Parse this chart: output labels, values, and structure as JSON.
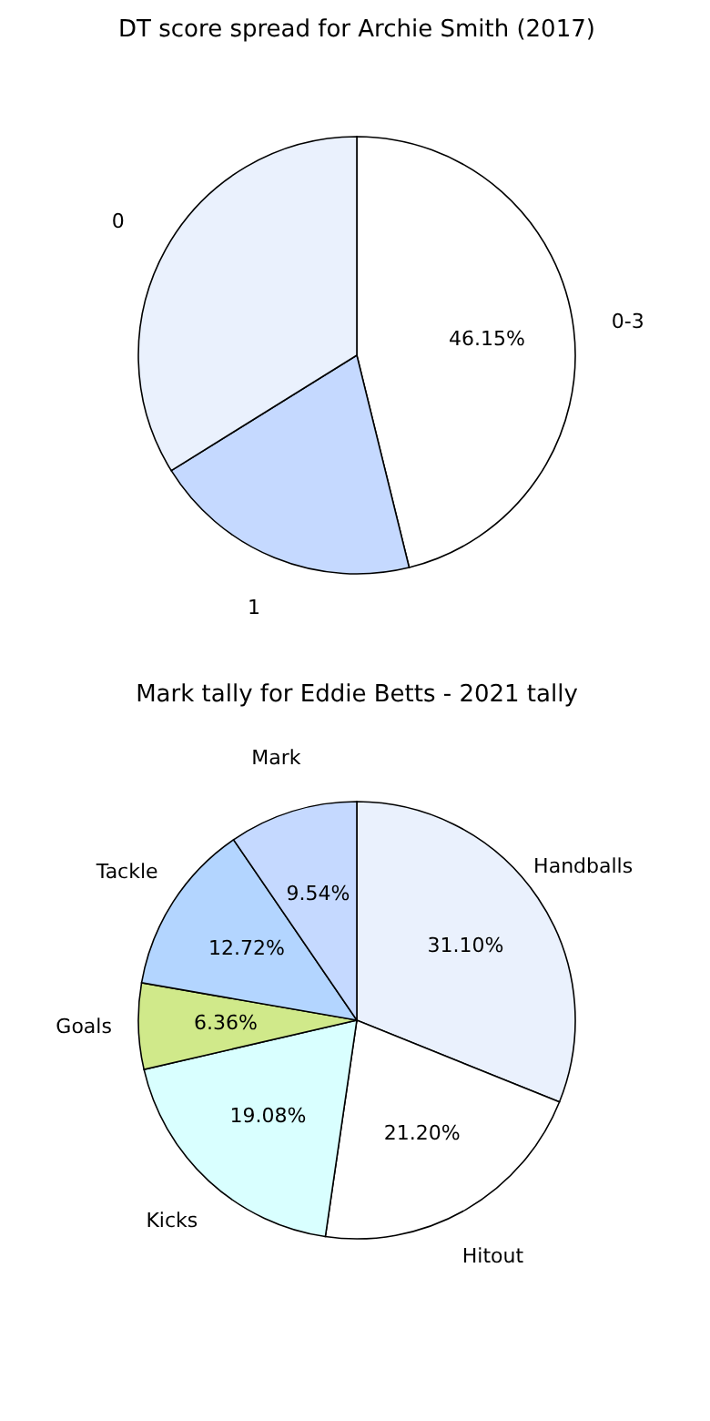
{
  "chart_data": [
    {
      "type": "pie",
      "title": "DT score spread for Archie Smith (2017)",
      "categories": [
        "0-3",
        "1",
        "0"
      ],
      "values": [
        46.15,
        20,
        33.85
      ],
      "colors": [
        "#ffffff",
        "#c5d9ff",
        "#eaf1fd"
      ],
      "value_labels": [
        "46.15%",
        null,
        null
      ]
    },
    {
      "type": "pie",
      "title": "Mark tally for Eddie Betts - 2021 tally",
      "categories": [
        "Handballs",
        "Hitout",
        "Kicks",
        "Goals",
        "Tackle",
        "Mark"
      ],
      "values": [
        31.1,
        21.2,
        19.08,
        6.36,
        12.72,
        9.54
      ],
      "colors": [
        "#eaf1fd",
        "#ffffff",
        "#d9ffff",
        "#d0e98a",
        "#b3d5ff",
        "#c5d9ff"
      ],
      "value_labels": [
        "31.10%",
        "21.20%",
        "19.08%",
        "6.36%",
        "12.72%",
        "9.54%"
      ]
    }
  ]
}
